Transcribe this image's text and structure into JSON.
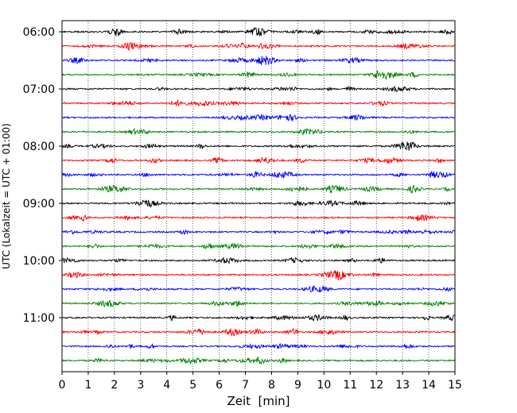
{
  "chart_data": {
    "type": "line",
    "xlabel": "Zeit  [min]",
    "ylabel": "UTC (Lokalzeit = UTC + 01:00)",
    "xlim": [
      0,
      15
    ],
    "x_ticks": [
      0,
      1,
      2,
      3,
      4,
      5,
      6,
      7,
      8,
      9,
      10,
      11,
      12,
      13,
      14,
      15
    ],
    "grid": "vertical-dotted",
    "y_tick_labels": [
      "06:00",
      "07:00",
      "08:00",
      "09:00",
      "10:00",
      "11:00"
    ],
    "trace_colors": [
      "#000000",
      "#ff0000",
      "#0000ff",
      "#008000"
    ],
    "traces": [
      {
        "start": "06:00",
        "color": "#000000"
      },
      {
        "start": "06:15",
        "color": "#ff0000"
      },
      {
        "start": "06:30",
        "color": "#0000ff"
      },
      {
        "start": "06:45",
        "color": "#008000"
      },
      {
        "start": "07:00",
        "color": "#000000"
      },
      {
        "start": "07:15",
        "color": "#ff0000"
      },
      {
        "start": "07:30",
        "color": "#0000ff"
      },
      {
        "start": "07:45",
        "color": "#008000"
      },
      {
        "start": "08:00",
        "color": "#000000"
      },
      {
        "start": "08:15",
        "color": "#ff0000"
      },
      {
        "start": "08:30",
        "color": "#0000ff"
      },
      {
        "start": "08:45",
        "color": "#008000"
      },
      {
        "start": "09:00",
        "color": "#000000"
      },
      {
        "start": "09:15",
        "color": "#ff0000"
      },
      {
        "start": "09:30",
        "color": "#0000ff"
      },
      {
        "start": "09:45",
        "color": "#008000"
      },
      {
        "start": "10:00",
        "color": "#000000"
      },
      {
        "start": "10:15",
        "color": "#ff0000"
      },
      {
        "start": "10:30",
        "color": "#0000ff"
      },
      {
        "start": "10:45",
        "color": "#008000"
      },
      {
        "start": "11:00",
        "color": "#000000"
      },
      {
        "start": "11:15",
        "color": "#ff0000"
      },
      {
        "start": "11:30",
        "color": "#0000ff"
      },
      {
        "start": "11:45",
        "color": "#008000"
      }
    ]
  }
}
